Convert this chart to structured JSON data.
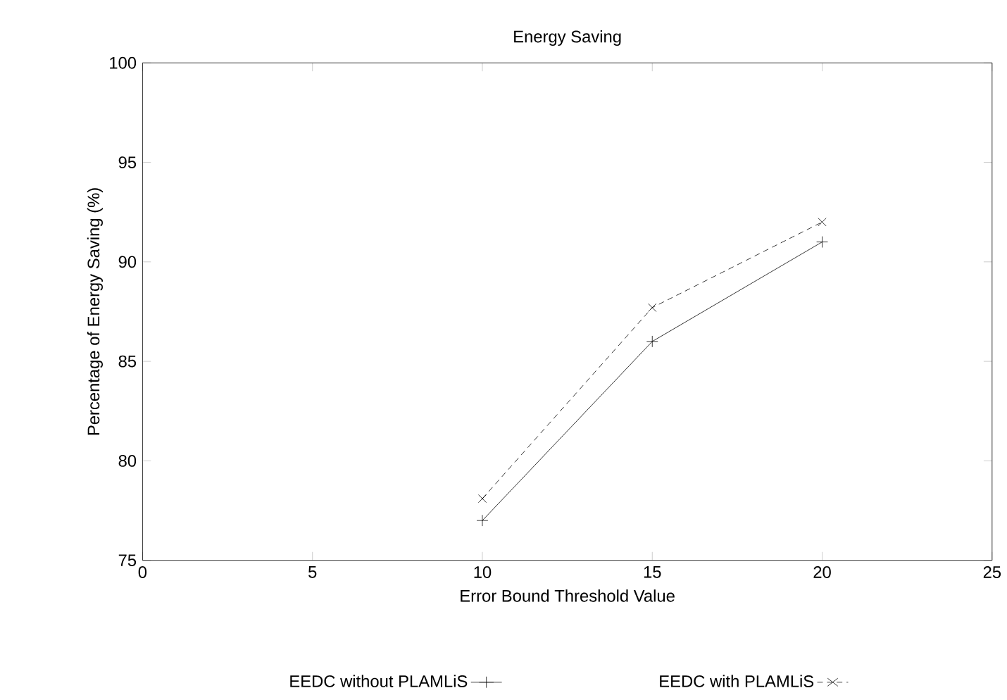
{
  "chart_data": {
    "type": "line",
    "title": "Energy Saving",
    "xlabel": "Error Bound Threshold Value",
    "ylabel": "Percentage of Energy Saving (%)",
    "xlim": [
      0,
      25
    ],
    "ylim": [
      75,
      100
    ],
    "xticks": [
      0,
      5,
      10,
      15,
      20,
      25
    ],
    "yticks": [
      75,
      80,
      85,
      90,
      95,
      100
    ],
    "grid": false,
    "legend": "bottom",
    "series": [
      {
        "name": "EEDC without PLAMLiS",
        "color": "#000000",
        "x": [
          10,
          15,
          20
        ],
        "values": [
          77,
          86,
          91
        ],
        "marker": "plus",
        "line_style": "solid"
      },
      {
        "name": "EEDC with PLAMLiS",
        "color": "#000000",
        "x": [
          10,
          15,
          20
        ],
        "values": [
          78.1,
          87.7,
          92
        ],
        "marker": "cross",
        "line_style": "dashed"
      }
    ]
  }
}
